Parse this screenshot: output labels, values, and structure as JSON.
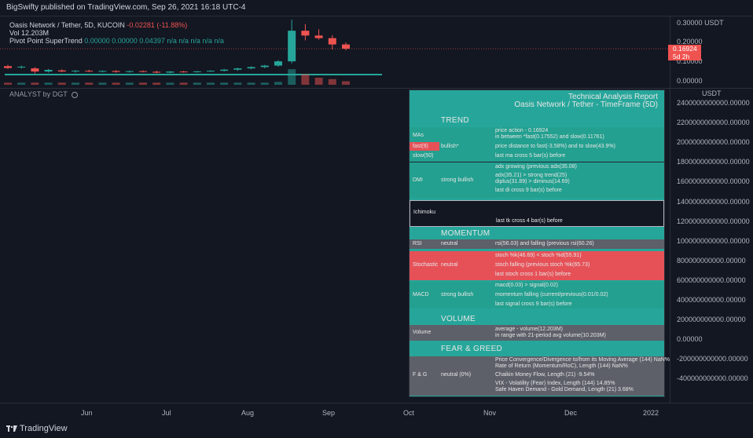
{
  "header": {
    "published": "BigSwifty published on TradingView.com, Sep 26, 2021 16:18 UTC-4"
  },
  "legend": {
    "symbol": "Oasis Network / Tether, 5D, KUCOIN",
    "change": "-0.02281 (-11.88%)",
    "volume": "Vol  12.203M",
    "supertrend_label": "Pivot Point SuperTrend",
    "supertrend_values": "0.00000  0.00000  0.04397  n/a  n/a  n/a  n/a  n/a",
    "analyst": "ANALYST by DGT"
  },
  "price_axis": {
    "ticks": [
      "0.30000",
      "0.20000",
      "0.10000",
      "0.00000"
    ],
    "unit": "USDT",
    "current_price": "0.16924",
    "current_sub": "5d 2h"
  },
  "panel_axis": {
    "unit": "USDT",
    "ticks": [
      "2400000000000.00000",
      "2200000000000.00000",
      "2000000000000.00000",
      "1800000000000.00000",
      "1600000000000.00000",
      "1400000000000.00000",
      "1200000000000.00000",
      "1000000000000.00000",
      "800000000000.00000",
      "600000000000.00000",
      "400000000000.00000",
      "200000000000.00000",
      "0.00000",
      "-200000000000.00000",
      "-400000000000.00000"
    ]
  },
  "time_axis": {
    "labels": [
      "Jun",
      "Jul",
      "Aug",
      "Sep",
      "Oct",
      "Nov",
      "Dec",
      "2022"
    ]
  },
  "footer": {
    "brand": "TradingView"
  },
  "report": {
    "title1": "Technical Analysis Report",
    "title2": "Oasis Network / Tether - TimeFrame (5D)",
    "trend": "TREND",
    "mas_label": "MAs",
    "mas_detail1": "price action - 0.16924",
    "mas_detail2": " in between *fast(0.17552) and slow(0.11761)",
    "fast_label": "fast(9)",
    "fast_status": "bullish*",
    "fast_detail": "price distance to fast(-3.58%) and to slow(43.9%)",
    "slow_label": "slow(50)",
    "slow_detail": "last ma cross 5 bar(s) before",
    "dmi_label": "DMI",
    "dmi_status": "strong bullish",
    "dmi_d1": "adx growing (previous adx(35.08)",
    "dmi_d2": "adx(35.21) > strong trend(25)",
    "dmi_d3": "diplus(31.89) > diminus(14.69)",
    "dmi_d4": "last di cross 9 bar(s) before",
    "ichi_label": "Ichimoku",
    "ichi_detail": "last tk cross 4 bar(s) before",
    "momentum": "MOMENTUM",
    "rsi_label": "RSI",
    "rsi_status": "neutral",
    "rsi_detail": "rsi(56.03) and falling (previous rsi(60.26)",
    "stoch_label": "Stochastic",
    "stoch_status": "neutral",
    "stoch_d1": "stoch %k(46.69) < stoch %d(55.91)",
    "stoch_d2": "stoch falling (previous stoch %k(65.73)",
    "stoch_d3": "last stoch cross 1 bar(s) before",
    "macd_label": "MACD",
    "macd_status": "strong bullish",
    "macd_d1": "macd(0.03) > signal(0.02)",
    "macd_d2": "momentum falling (current/previous(0.01/0.02)",
    "macd_d3": "last signal cross 9 bar(s) before",
    "volume_title": "VOLUME",
    "vol_label": "Volume",
    "vol_d1": "average - volume(12.203M)",
    "vol_d2": " in range with 21-period avg volume(10.203M)",
    "fg_title": "FEAR & GREED",
    "fg_label": "F & G",
    "fg_status": "neutral (0%)",
    "fg_d1": "Price Convergence/Divergence to/from its Moving Average (144) NaN%",
    "fg_d2": "Rate of Return (Momentum/RoC), Length (144) NaN%",
    "fg_d3": "Chaikin Money Flow, Length (21) -9.54%",
    "fg_d4": "VIX - Volatility (Fear) Index, Length (144) 14.85%",
    "fg_d5": "Safe Haven Demand - Gold Demand, Length (21) 3.68%"
  },
  "colors": {
    "bull": "#26a69a",
    "bear": "#ef5350",
    "background": "#131722"
  },
  "chart_data": {
    "type": "candlestick",
    "unit": "USDT",
    "candles": [
      {
        "o": 0.075,
        "h": 0.082,
        "l": 0.06,
        "c": 0.065
      },
      {
        "o": 0.068,
        "h": 0.078,
        "l": 0.062,
        "c": 0.072
      },
      {
        "o": 0.063,
        "h": 0.07,
        "l": 0.036,
        "c": 0.046
      },
      {
        "o": 0.046,
        "h": 0.06,
        "l": 0.04,
        "c": 0.055
      },
      {
        "o": 0.052,
        "h": 0.058,
        "l": 0.042,
        "c": 0.046
      },
      {
        "o": 0.046,
        "h": 0.054,
        "l": 0.04,
        "c": 0.05
      },
      {
        "o": 0.05,
        "h": 0.056,
        "l": 0.043,
        "c": 0.047
      },
      {
        "o": 0.047,
        "h": 0.052,
        "l": 0.041,
        "c": 0.049
      },
      {
        "o": 0.049,
        "h": 0.053,
        "l": 0.04,
        "c": 0.044
      },
      {
        "o": 0.044,
        "h": 0.051,
        "l": 0.04,
        "c": 0.048
      },
      {
        "o": 0.048,
        "h": 0.052,
        "l": 0.042,
        "c": 0.045
      },
      {
        "o": 0.045,
        "h": 0.05,
        "l": 0.037,
        "c": 0.04
      },
      {
        "o": 0.04,
        "h": 0.048,
        "l": 0.037,
        "c": 0.046
      },
      {
        "o": 0.046,
        "h": 0.05,
        "l": 0.04,
        "c": 0.043
      },
      {
        "o": 0.043,
        "h": 0.049,
        "l": 0.04,
        "c": 0.047
      },
      {
        "o": 0.047,
        "h": 0.053,
        "l": 0.044,
        "c": 0.05
      },
      {
        "o": 0.05,
        "h": 0.06,
        "l": 0.046,
        "c": 0.056
      },
      {
        "o": 0.056,
        "h": 0.066,
        "l": 0.05,
        "c": 0.063
      },
      {
        "o": 0.063,
        "h": 0.074,
        "l": 0.058,
        "c": 0.07
      },
      {
        "o": 0.07,
        "h": 0.082,
        "l": 0.064,
        "c": 0.078
      },
      {
        "o": 0.078,
        "h": 0.108,
        "l": 0.072,
        "c": 0.101
      },
      {
        "o": 0.101,
        "h": 0.325,
        "l": 0.09,
        "c": 0.266
      },
      {
        "o": 0.266,
        "h": 0.302,
        "l": 0.214,
        "c": 0.24
      },
      {
        "o": 0.24,
        "h": 0.274,
        "l": 0.218,
        "c": 0.226
      },
      {
        "o": 0.226,
        "h": 0.242,
        "l": 0.165,
        "c": 0.192
      },
      {
        "o": 0.192,
        "h": 0.203,
        "l": 0.16,
        "c": 0.169
      }
    ],
    "volumes": [
      0.3,
      0.3,
      0.3,
      0.3,
      0.3,
      0.3,
      0.3,
      0.3,
      0.3,
      0.3,
      0.3,
      0.3,
      0.3,
      0.3,
      0.3,
      0.3,
      0.3,
      0.3,
      0.3,
      0.3,
      0.4,
      2.2,
      1.5,
      1.0,
      0.8,
      0.5
    ],
    "ylim": [
      0.0,
      0.33
    ],
    "xlabels": [
      "Jun",
      "Jul",
      "Aug",
      "Sep",
      "Oct",
      "Nov",
      "Dec",
      "2022"
    ]
  }
}
